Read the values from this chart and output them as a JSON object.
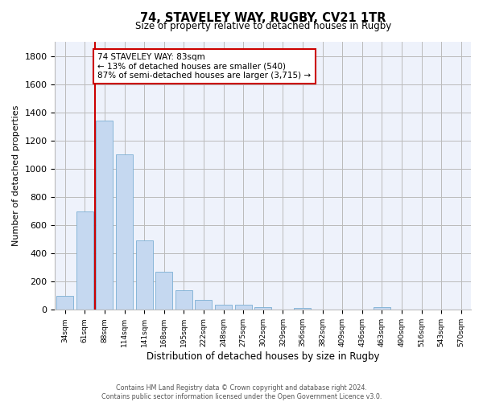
{
  "title1": "74, STAVELEY WAY, RUGBY, CV21 1TR",
  "title2": "Size of property relative to detached houses in Rugby",
  "xlabel": "Distribution of detached houses by size in Rugby",
  "ylabel": "Number of detached properties",
  "bar_color": "#c5d8f0",
  "bar_edge_color": "#7bafd4",
  "bar_heights": [
    100,
    700,
    1340,
    1100,
    490,
    270,
    140,
    70,
    35,
    35,
    20,
    0,
    15,
    0,
    0,
    0,
    20,
    0,
    0,
    0,
    0
  ],
  "categories": [
    "34sqm",
    "61sqm",
    "88sqm",
    "114sqm",
    "141sqm",
    "168sqm",
    "195sqm",
    "222sqm",
    "248sqm",
    "275sqm",
    "302sqm",
    "329sqm",
    "356sqm",
    "382sqm",
    "409sqm",
    "436sqm",
    "463sqm",
    "490sqm",
    "516sqm",
    "543sqm",
    "570sqm"
  ],
  "vline_x": 1.5,
  "vline_color": "#cc0000",
  "annotation_text": "74 STAVELEY WAY: 83sqm\n← 13% of detached houses are smaller (540)\n87% of semi-detached houses are larger (3,715) →",
  "annotation_box_color": "#cc0000",
  "ylim": [
    0,
    1900
  ],
  "yticks": [
    0,
    200,
    400,
    600,
    800,
    1000,
    1200,
    1400,
    1600,
    1800
  ],
  "footer1": "Contains HM Land Registry data © Crown copyright and database right 2024.",
  "footer2": "Contains public sector information licensed under the Open Government Licence v3.0.",
  "background_color": "#eef2fb",
  "grid_color": "#bbbbbb"
}
